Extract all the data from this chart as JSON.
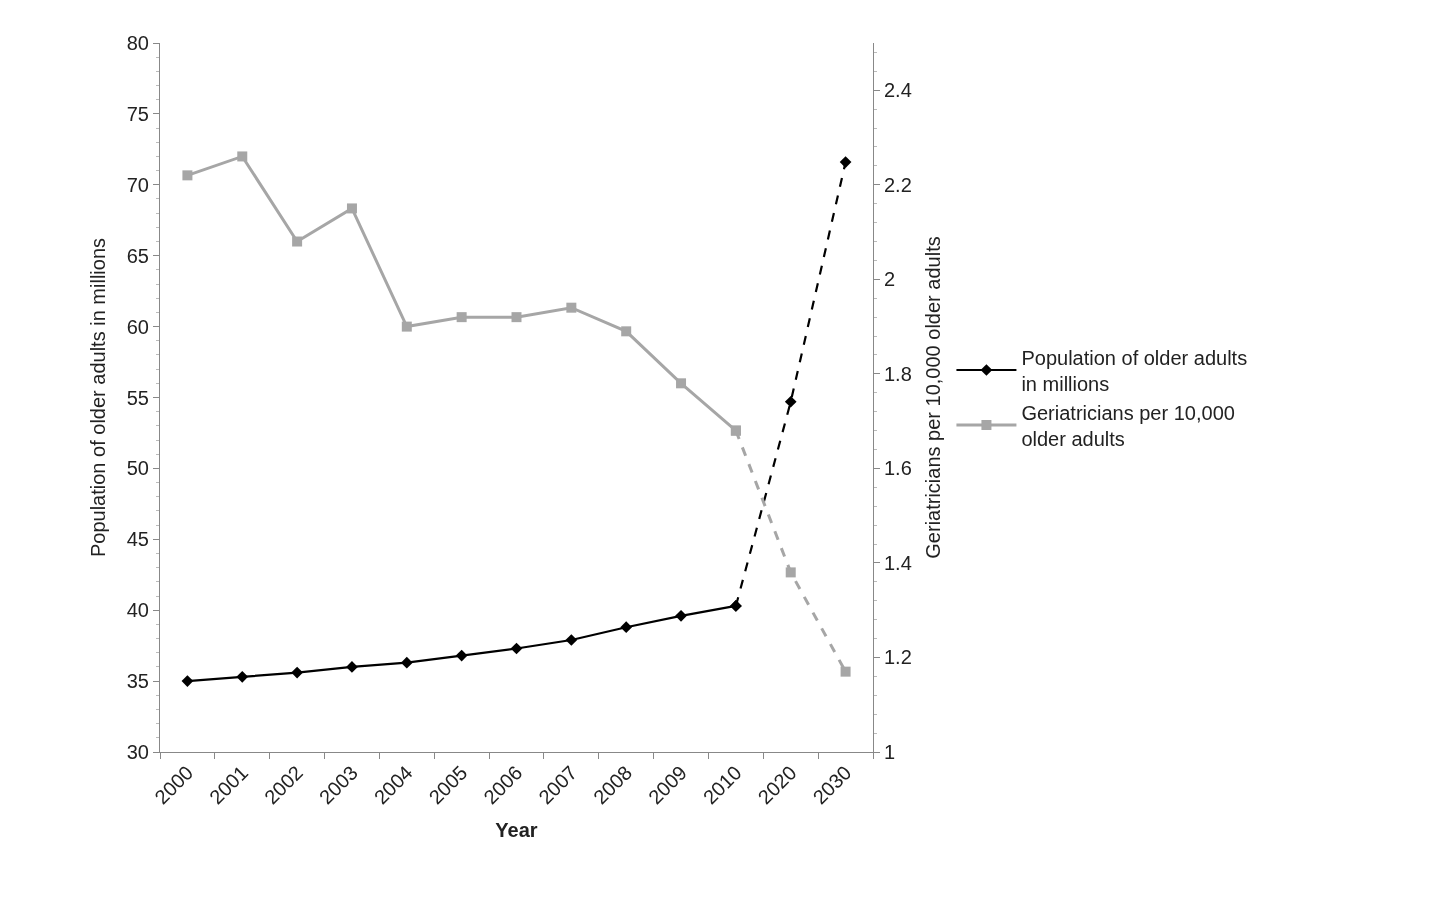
{
  "chart_data": {
    "type": "line",
    "xlabel": "Year",
    "ylabel": "Population of older adults in millions",
    "y2label": "Geriatricians per 10,000 older adults",
    "categories": [
      "2000",
      "2001",
      "2002",
      "2003",
      "2004",
      "2005",
      "2006",
      "2007",
      "2008",
      "2009",
      "2010",
      "2020",
      "2030"
    ],
    "series": [
      {
        "name": "Population of older adults in millions",
        "color": "#000000",
        "marker": "diamond",
        "line_style": "solid",
        "values": [
          35.0,
          35.3,
          35.6,
          36.0,
          36.3,
          36.8,
          37.3,
          37.9,
          38.8,
          39.6,
          40.3,
          null,
          null
        ]
      },
      {
        "name": "Geriatricians per 10,000 older adults",
        "color": "#a6a6a6",
        "marker": "square",
        "line_style": "solid",
        "axis": "y2",
        "values": [
          2.22,
          2.26,
          2.08,
          2.15,
          1.9,
          1.92,
          1.92,
          1.94,
          1.89,
          1.78,
          1.68,
          null,
          null
        ]
      },
      {
        "color": "#000000",
        "marker": "diamond",
        "line_style": "dashed",
        "values": [
          null,
          null,
          null,
          null,
          null,
          null,
          null,
          null,
          null,
          null,
          40.3,
          54.7,
          71.6
        ]
      },
      {
        "color": "#a6a6a6",
        "marker": "square",
        "line_style": "dashed",
        "axis": "y2",
        "values": [
          null,
          null,
          null,
          null,
          null,
          null,
          null,
          null,
          null,
          null,
          1.68,
          1.38,
          1.17
        ]
      }
    ],
    "ylim": [
      30,
      80
    ],
    "yticks": [
      30,
      35,
      40,
      45,
      50,
      55,
      60,
      65,
      70,
      75,
      80
    ],
    "y2lim": [
      1,
      2.5
    ],
    "y2ticks": [
      1,
      1.2,
      1.4,
      1.6,
      1.8,
      2,
      2.2,
      2.4
    ],
    "legend": "right"
  }
}
